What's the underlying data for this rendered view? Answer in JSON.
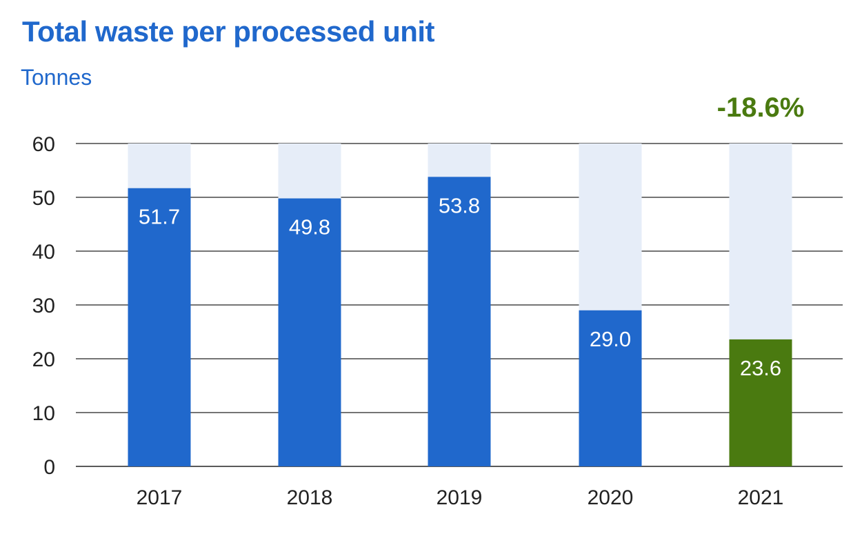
{
  "header": {
    "title": "Total waste per processed unit",
    "subtitle": "Tonnes",
    "change_label": "-18.6%"
  },
  "colors": {
    "title": "#2068cc",
    "bar": "#2068cc",
    "highlight_bar": "#4a7a10",
    "track": "#e6edf8",
    "change_label": "#4a7a10",
    "gridline": "#222222",
    "axis_text": "#222222",
    "value_label": "#ffffff"
  },
  "chart_data": {
    "type": "bar",
    "title": "Total waste per processed unit",
    "subtitle": "Tonnes",
    "categories": [
      "2017",
      "2018",
      "2019",
      "2020",
      "2021"
    ],
    "values": [
      51.7,
      49.8,
      53.8,
      29.0,
      23.6
    ],
    "value_labels": [
      "51.7",
      "49.8",
      "53.8",
      "29.0",
      "23.6"
    ],
    "highlight_index": 4,
    "yticks": [
      0,
      10,
      20,
      30,
      40,
      50,
      60
    ],
    "ylim": [
      0,
      60
    ],
    "grid": true,
    "legend": "none",
    "annotation": "-18.6%"
  }
}
